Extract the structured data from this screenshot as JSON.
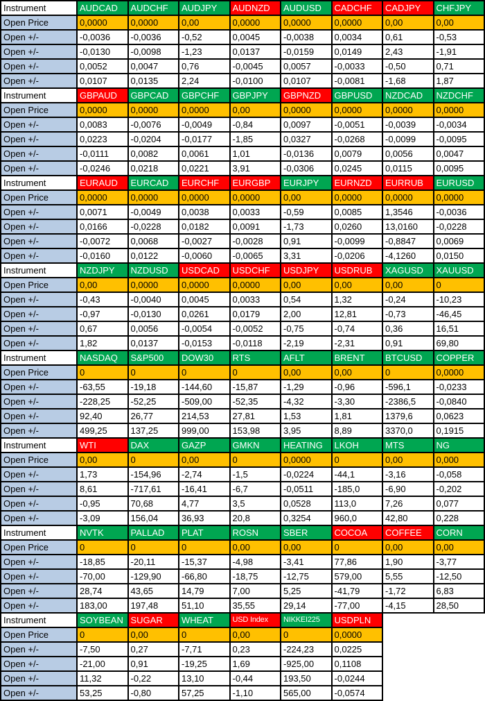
{
  "labels": {
    "instrument": "Instrument",
    "open_price": "Open Price",
    "open_delta": "Open +/-"
  },
  "colors": {
    "green": "#00A651",
    "red": "#FF0000",
    "orange": "#FFC000",
    "label_blue": "#B8CCE4",
    "grid": "#000000"
  },
  "blocks": [
    {
      "instruments": [
        {
          "name": "AUDCAD",
          "color": "green",
          "open_price": "0,0000",
          "deltas": [
            "-0,0036",
            "-0,0130",
            "0,0052",
            "0,0107"
          ]
        },
        {
          "name": "AUDCHF",
          "color": "green",
          "open_price": "0,0000",
          "deltas": [
            "-0,0036",
            "-0,0098",
            "0,0047",
            "0,0135"
          ]
        },
        {
          "name": "AUDJPY",
          "color": "green",
          "open_price": "0,00",
          "deltas": [
            "-0,52",
            "-1,23",
            "0,76",
            "2,24"
          ]
        },
        {
          "name": "AUDNZD",
          "color": "red",
          "open_price": "0,0000",
          "deltas": [
            "0,0045",
            "0,0137",
            "-0,0045",
            "-0,0100"
          ]
        },
        {
          "name": "AUDUSD",
          "color": "green",
          "open_price": "0,0000",
          "deltas": [
            "-0,0038",
            "-0,0159",
            "0,0057",
            "0,0107"
          ]
        },
        {
          "name": "CADCHF",
          "color": "red",
          "open_price": "0,0000",
          "deltas": [
            "0,0034",
            "0,0149",
            "-0,0033",
            "-0,0081"
          ]
        },
        {
          "name": "CADJPY",
          "color": "red",
          "open_price": "0,00",
          "deltas": [
            "0,61",
            "2,43",
            "-0,50",
            "-1,68"
          ]
        },
        {
          "name": "CHFJPY",
          "color": "green",
          "open_price": "0,00",
          "deltas": [
            "-0,53",
            "-1,91",
            "0,71",
            "1,87"
          ]
        }
      ]
    },
    {
      "instruments": [
        {
          "name": "GBPAUD",
          "color": "red",
          "open_price": "0,0000",
          "deltas": [
            "0,0083",
            "0,0223",
            "-0,0111",
            "-0,0246"
          ]
        },
        {
          "name": "GBPCAD",
          "color": "green",
          "open_price": "0,0000",
          "deltas": [
            "-0,0076",
            "-0,0204",
            "0,0082",
            "0,0218"
          ]
        },
        {
          "name": "GBPCHF",
          "color": "green",
          "open_price": "0,0000",
          "deltas": [
            "-0,0049",
            "-0,0177",
            "0,0061",
            "0,0221"
          ]
        },
        {
          "name": "GBPJPY",
          "color": "green",
          "open_price": "0,00",
          "deltas": [
            "-0,84",
            "-1,85",
            "1,01",
            "3,91"
          ]
        },
        {
          "name": "GBPNZD",
          "color": "red",
          "open_price": "0,0000",
          "deltas": [
            "0,0097",
            "0,0327",
            "-0,0136",
            "-0,0306"
          ]
        },
        {
          "name": "GBPUSD",
          "color": "green",
          "open_price": "0,0000",
          "deltas": [
            "-0,0051",
            "-0,0268",
            "0,0079",
            "0,0245"
          ]
        },
        {
          "name": "NZDCAD",
          "color": "green",
          "open_price": "0,0000",
          "deltas": [
            "-0,0039",
            "-0,0099",
            "0,0056",
            "0,0115"
          ]
        },
        {
          "name": "NZDCHF",
          "color": "green",
          "open_price": "0,0000",
          "deltas": [
            "-0,0034",
            "-0,0095",
            "0,0047",
            "0,0095"
          ]
        }
      ]
    },
    {
      "instruments": [
        {
          "name": "EURAUD",
          "color": "red",
          "open_price": "0,0000",
          "deltas": [
            "0,0071",
            "0,0166",
            "-0,0072",
            "-0,0160"
          ]
        },
        {
          "name": "EURCAD",
          "color": "green",
          "open_price": "0,0000",
          "deltas": [
            "-0,0049",
            "-0,0228",
            "0,0068",
            "0,0122"
          ]
        },
        {
          "name": "EURCHF",
          "color": "red",
          "open_price": "0,0000",
          "deltas": [
            "0,0038",
            "0,0182",
            "-0,0027",
            "-0,0060"
          ]
        },
        {
          "name": "EURGBP",
          "color": "red",
          "open_price": "0,0000",
          "deltas": [
            "0,0033",
            "0,0091",
            "-0,0028",
            "-0,0065"
          ]
        },
        {
          "name": "EURJPY",
          "color": "green",
          "open_price": "0,00",
          "deltas": [
            "-0,59",
            "-1,73",
            "0,91",
            "3,31"
          ]
        },
        {
          "name": "EURNZD",
          "color": "red",
          "open_price": "0,0000",
          "deltas": [
            "0,0085",
            "0,0260",
            "-0,0099",
            "-0,0206"
          ]
        },
        {
          "name": "EURRUB",
          "color": "red",
          "open_price": "0,0000",
          "deltas": [
            "1,3546",
            "13,0160",
            "-0,8847",
            "-4,1260"
          ]
        },
        {
          "name": "EURUSD",
          "color": "green",
          "open_price": "0,0000",
          "deltas": [
            "-0,0036",
            "-0,0228",
            "0,0069",
            "0,0150"
          ]
        }
      ]
    },
    {
      "instruments": [
        {
          "name": "NZDJPY",
          "color": "green",
          "open_price": "0,00",
          "deltas": [
            "-0,43",
            "-0,97",
            "0,67",
            "1,82"
          ]
        },
        {
          "name": "NZDUSD",
          "color": "green",
          "open_price": "0,0000",
          "deltas": [
            "-0,0040",
            "-0,0130",
            "0,0056",
            "0,0137"
          ]
        },
        {
          "name": "USDCAD",
          "color": "red",
          "open_price": "0,0000",
          "deltas": [
            "0,0045",
            "0,0261",
            "-0,0054",
            "-0,0153"
          ]
        },
        {
          "name": "USDCHF",
          "color": "red",
          "open_price": "0,0000",
          "deltas": [
            "0,0033",
            "0,0179",
            "-0,0052",
            "-0,0118"
          ]
        },
        {
          "name": "USDJPY",
          "color": "red",
          "open_price": "0,00",
          "deltas": [
            "0,54",
            "2,00",
            "-0,75",
            "-2,19"
          ]
        },
        {
          "name": "USDRUB",
          "color": "red",
          "open_price": "0,00",
          "deltas": [
            "1,32",
            "12,81",
            "-0,74",
            "-2,31"
          ]
        },
        {
          "name": "XAGUSD",
          "color": "green",
          "open_price": "0,00",
          "deltas": [
            "-0,24",
            "-0,73",
            "0,36",
            "0,91"
          ]
        },
        {
          "name": "XAUUSD",
          "color": "green",
          "open_price": "0",
          "deltas": [
            "-10,23",
            "-46,45",
            "16,51",
            "69,80"
          ]
        }
      ]
    },
    {
      "instruments": [
        {
          "name": "NASDAQ",
          "color": "green",
          "open_price": "0",
          "deltas": [
            "-63,55",
            "-228,25",
            "92,40",
            "499,25"
          ]
        },
        {
          "name": "S&P500",
          "color": "green",
          "open_price": "0",
          "deltas": [
            "-19,18",
            "-52,25",
            "26,77",
            "137,25"
          ]
        },
        {
          "name": "DOW30",
          "color": "green",
          "open_price": "0",
          "deltas": [
            "-144,60",
            "-509,00",
            "214,53",
            "999,00"
          ]
        },
        {
          "name": "RTS",
          "color": "green",
          "open_price": "0",
          "deltas": [
            "-15,87",
            "-52,35",
            "27,81",
            "153,98"
          ]
        },
        {
          "name": "AFLT",
          "color": "green",
          "open_price": "0,00",
          "deltas": [
            "-1,29",
            "-4,32",
            "1,53",
            "3,95"
          ]
        },
        {
          "name": "BRENT",
          "color": "green",
          "open_price": "0,00",
          "deltas": [
            "-0,96",
            "-3,30",
            "1,81",
            "8,89"
          ]
        },
        {
          "name": "BTCUSD",
          "color": "green",
          "open_price": "0",
          "deltas": [
            "-596,1",
            "-2386,5",
            "1379,6",
            "3370,0"
          ]
        },
        {
          "name": "COPPER",
          "color": "green",
          "open_price": "0,0000",
          "deltas": [
            "-0,0233",
            "-0,0840",
            "0,0623",
            "0,1915"
          ]
        }
      ]
    },
    {
      "instruments": [
        {
          "name": "WTI",
          "color": "red",
          "open_price": "0,00",
          "deltas": [
            "1,73",
            "8,61",
            "-0,95",
            "-3,09"
          ]
        },
        {
          "name": "DAX",
          "color": "green",
          "open_price": "0",
          "deltas": [
            "-154,96",
            "-717,61",
            "70,68",
            "156,04"
          ]
        },
        {
          "name": "GAZP",
          "color": "green",
          "open_price": "0,00",
          "deltas": [
            "-2,74",
            "-16,41",
            "4,77",
            "36,93"
          ]
        },
        {
          "name": "GMKN",
          "color": "green",
          "open_price": "0",
          "deltas": [
            "-1,5",
            "-6,7",
            "3,5",
            "20,8"
          ]
        },
        {
          "name": "HEATING",
          "color": "green",
          "open_price": "0,0000",
          "deltas": [
            "-0,0224",
            "-0,0511",
            "0,0528",
            "0,3254"
          ]
        },
        {
          "name": "LKOH",
          "color": "green",
          "open_price": "0",
          "deltas": [
            "-44,1",
            "-185,0",
            "113,0",
            "960,0"
          ]
        },
        {
          "name": "MTS",
          "color": "green",
          "open_price": "0,00",
          "deltas": [
            "-3,16",
            "-6,90",
            "7,26",
            "42,80"
          ]
        },
        {
          "name": "NG",
          "color": "green",
          "open_price": "0,000",
          "deltas": [
            "-0,058",
            "-0,202",
            "0,077",
            "0,228"
          ]
        }
      ]
    },
    {
      "instruments": [
        {
          "name": "NVTK",
          "color": "green",
          "open_price": "0",
          "deltas": [
            "-18,85",
            "-70,00",
            "28,74",
            "183,00"
          ]
        },
        {
          "name": "PALLAD",
          "color": "green",
          "open_price": "0",
          "deltas": [
            "-20,11",
            "-129,90",
            "43,65",
            "197,48"
          ]
        },
        {
          "name": "PLAT",
          "color": "green",
          "open_price": "0",
          "deltas": [
            "-15,37",
            "-66,80",
            "14,79",
            "51,10"
          ]
        },
        {
          "name": "ROSN",
          "color": "green",
          "open_price": "0,00",
          "deltas": [
            "-4,98",
            "-18,75",
            "7,00",
            "35,55"
          ]
        },
        {
          "name": "SBER",
          "color": "green",
          "open_price": "0,00",
          "deltas": [
            "-3,41",
            "-12,75",
            "5,25",
            "29,14"
          ]
        },
        {
          "name": "COCOA",
          "color": "red",
          "open_price": "0",
          "deltas": [
            "77,86",
            "579,00",
            "-41,79",
            "-77,00"
          ]
        },
        {
          "name": "COFFEE",
          "color": "red",
          "open_price": "0,00",
          "deltas": [
            "1,90",
            "5,55",
            "-1,72",
            "-4,15"
          ]
        },
        {
          "name": "CORN",
          "color": "green",
          "open_price": "0,00",
          "deltas": [
            "-3,77",
            "-12,50",
            "6,83",
            "28,50"
          ]
        }
      ]
    },
    {
      "instruments": [
        {
          "name": "SOYBEAN",
          "color": "green",
          "open_price": "0",
          "deltas": [
            "-7,50",
            "-21,00",
            "11,32",
            "53,25"
          ]
        },
        {
          "name": "SUGAR",
          "color": "red",
          "open_price": "0,00",
          "deltas": [
            "0,27",
            "0,91",
            "-0,22",
            "-0,80"
          ]
        },
        {
          "name": "WHEAT",
          "color": "green",
          "open_price": "0",
          "deltas": [
            "-7,71",
            "-19,25",
            "13,10",
            "57,25"
          ]
        },
        {
          "name": "USD Index",
          "color": "red",
          "open_price": "0,00",
          "deltas": [
            "0,23",
            "1,69",
            "-0,44",
            "-1,10"
          ]
        },
        {
          "name": "NIKKEI225",
          "color": "green",
          "open_price": "0",
          "deltas": [
            "-224,23",
            "-925,00",
            "193,50",
            "565,00"
          ]
        },
        {
          "name": "USDPLN",
          "color": "red",
          "open_price": "0,0000",
          "deltas": [
            "0,0225",
            "0,1108",
            "-0,0244",
            "-0,0574"
          ]
        }
      ]
    }
  ]
}
